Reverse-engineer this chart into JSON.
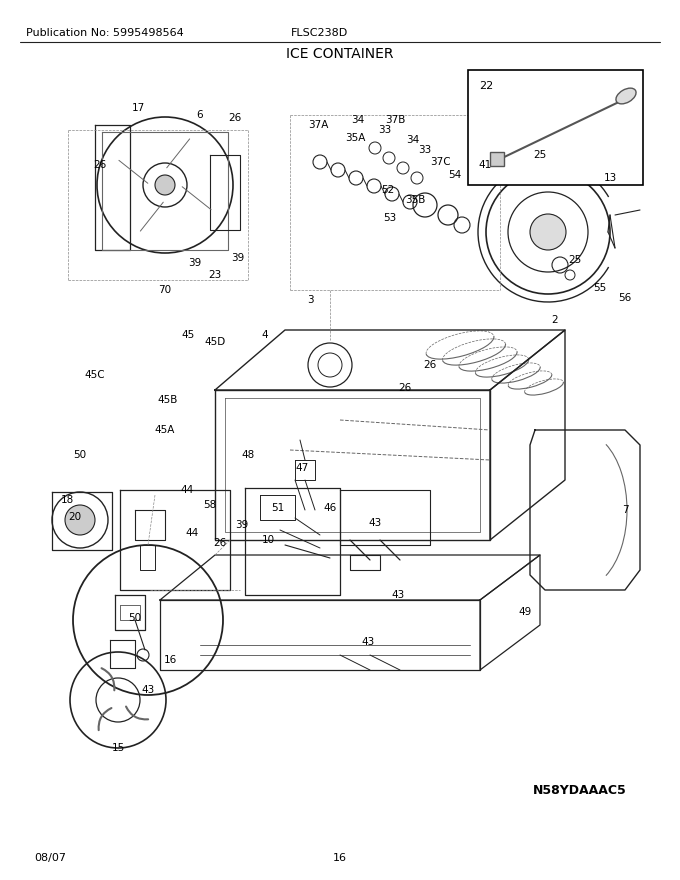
{
  "pub_no": "Publication No: 5995498564",
  "model": "FLSC238D",
  "title": "ICE CONTAINER",
  "date": "08/07",
  "page": "16",
  "part_code": "N58YDAAAC5",
  "fig_width": 6.8,
  "fig_height": 8.8,
  "dpi": 100
}
